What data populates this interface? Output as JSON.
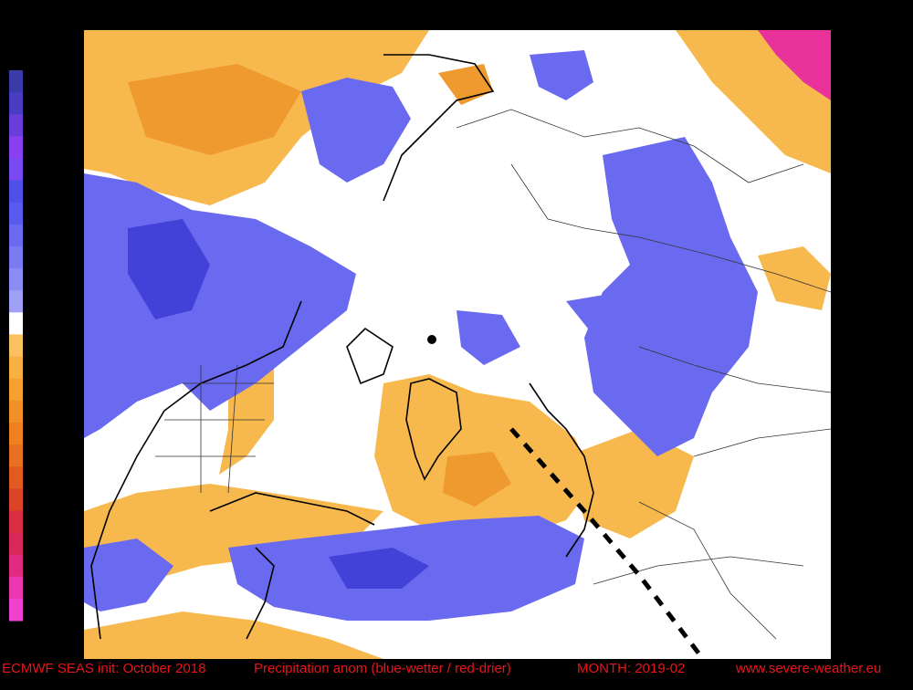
{
  "footer": {
    "init": "ECMWF SEAS init: October 2018",
    "description": "Precipitation anom (blue-wetter / red-drier)",
    "month": "MONTH: 2019-02",
    "website": "www.severe-weather.eu"
  }
}
